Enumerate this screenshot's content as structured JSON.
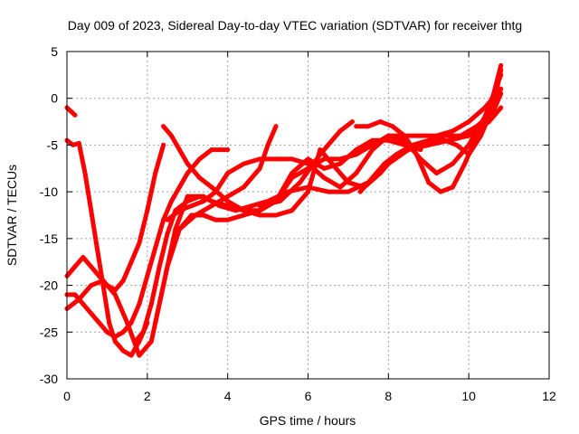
{
  "chart_data": {
    "type": "line",
    "title": "Day 009 of 2023, Sidereal Day-to-day VTEC variation (SDTVAR) for receiver thtg",
    "xlabel": "GPS time / hours",
    "ylabel": "SDTVAR / TECUs",
    "xlim": [
      0,
      12
    ],
    "ylim": [
      -30,
      5
    ],
    "x_ticks": [
      0,
      2,
      4,
      6,
      8,
      10,
      12
    ],
    "y_ticks": [
      -30,
      -25,
      -20,
      -15,
      -10,
      -5,
      0,
      5
    ],
    "grid": true,
    "legend": "none",
    "color": "#ff0000",
    "series": [
      {
        "x": [
          0.0,
          0.2
        ],
        "y": [
          -1.0,
          -1.8
        ]
      },
      {
        "x": [
          0.0,
          0.15,
          0.3,
          0.45,
          0.6,
          0.75,
          0.9,
          1.05,
          1.2,
          1.4,
          1.6,
          1.8,
          2.0
        ],
        "y": [
          -4.5,
          -5.0,
          -4.8,
          -8.0,
          -12.0,
          -16.0,
          -20.0,
          -24.0,
          -26.0,
          -27.0,
          -27.5,
          -26.0,
          -24.0
        ]
      },
      {
        "x": [
          0.0,
          0.2,
          0.4,
          0.6,
          0.8,
          1.0,
          1.2,
          1.4,
          1.6,
          1.8,
          2.0,
          2.2,
          2.4
        ],
        "y": [
          -19.0,
          -18.0,
          -17.0,
          -18.0,
          -19.0,
          -20.0,
          -20.5,
          -19.5,
          -17.5,
          -15.5,
          -12.0,
          -8.0,
          -5.0
        ]
      },
      {
        "x": [
          0.0,
          0.2,
          0.4,
          0.6,
          0.8,
          1.0,
          1.2,
          1.4,
          1.6,
          1.8,
          2.0,
          2.2,
          2.4,
          2.6,
          2.8,
          3.0,
          3.3,
          3.6,
          4.0
        ],
        "y": [
          -21.0,
          -21.0,
          -22.0,
          -23.0,
          -24.0,
          -25.0,
          -25.5,
          -25.0,
          -24.0,
          -22.0,
          -19.0,
          -16.0,
          -13.0,
          -11.0,
          -9.5,
          -8.0,
          -6.5,
          -5.5,
          -5.5
        ]
      },
      {
        "x": [
          0.0,
          0.3,
          0.6,
          0.9,
          1.2,
          1.5,
          1.8,
          2.1,
          2.4,
          2.7,
          3.0,
          3.4,
          3.8,
          4.2,
          4.6,
          5.0,
          5.5,
          6.0,
          6.5,
          7.0,
          7.5,
          8.0,
          8.5,
          9.0,
          9.5,
          10.0,
          10.5,
          10.8
        ],
        "y": [
          -22.5,
          -21.5,
          -20.0,
          -19.5,
          -21.0,
          -24.0,
          -27.5,
          -26.0,
          -20.0,
          -14.0,
          -10.5,
          -10.5,
          -11.5,
          -12.0,
          -11.5,
          -11.0,
          -10.0,
          -9.5,
          -10.0,
          -10.0,
          -9.0,
          -7.0,
          -5.5,
          -5.0,
          -4.5,
          -4.0,
          -2.5,
          -1.0
        ]
      },
      {
        "x": [
          1.7,
          1.9,
          2.1,
          2.3,
          2.5,
          2.7,
          3.0,
          3.3,
          3.6,
          4.0,
          4.4,
          4.8,
          5.2,
          5.6,
          6.0,
          6.4,
          6.8,
          7.2,
          7.6,
          8.0,
          8.4,
          8.8
        ],
        "y": [
          -26.0,
          -25.0,
          -22.0,
          -18.0,
          -14.5,
          -12.0,
          -11.0,
          -10.5,
          -11.0,
          -11.5,
          -12.0,
          -12.0,
          -11.0,
          -8.0,
          -6.5,
          -7.5,
          -7.0,
          -5.5,
          -4.5,
          -4.5,
          -5.0,
          -5.5
        ]
      },
      {
        "x": [
          2.2,
          2.5,
          2.8,
          3.1,
          3.4,
          3.7,
          4.0,
          4.4,
          4.8,
          5.2,
          5.6,
          6.0,
          6.4,
          6.8,
          7.2,
          7.6,
          8.0,
          8.4,
          8.8,
          9.2,
          9.6,
          10.0,
          10.4,
          10.8
        ],
        "y": [
          -24.0,
          -18.0,
          -14.0,
          -12.5,
          -12.5,
          -13.0,
          -13.0,
          -12.5,
          -12.0,
          -11.0,
          -8.5,
          -7.5,
          -6.5,
          -6.5,
          -6.0,
          -5.0,
          -4.0,
          -4.0,
          -4.0,
          -4.0,
          -3.5,
          -2.5,
          -1.0,
          1.0
        ]
      },
      {
        "x": [
          2.4,
          2.6,
          2.8,
          3.0,
          3.3,
          3.6,
          4.0,
          4.4,
          4.8,
          5.2,
          5.6,
          6.0,
          6.3,
          6.6,
          7.0,
          7.4,
          7.8,
          8.2,
          8.6,
          9.0,
          9.4,
          9.8,
          10.2,
          10.6,
          10.8
        ],
        "y": [
          -3.0,
          -4.0,
          -5.5,
          -7.0,
          -8.5,
          -9.5,
          -11.0,
          -12.0,
          -12.5,
          -12.5,
          -12.0,
          -10.0,
          -5.5,
          -7.0,
          -9.0,
          -9.5,
          -8.0,
          -6.0,
          -5.0,
          -4.5,
          -4.0,
          -4.0,
          -3.0,
          -1.5,
          0.5
        ]
      },
      {
        "x": [
          2.5,
          2.8,
          3.1,
          3.4,
          3.7,
          4.0,
          4.4,
          4.8,
          5.2,
          5.6,
          6.0,
          6.4,
          6.8,
          7.2,
          7.6,
          8.0,
          8.4,
          8.8,
          9.2,
          9.6,
          10.0,
          10.4,
          10.8
        ],
        "y": [
          -13.0,
          -12.0,
          -11.5,
          -11.0,
          -10.0,
          -8.0,
          -7.0,
          -6.5,
          -6.5,
          -6.5,
          -7.0,
          -8.5,
          -9.5,
          -8.0,
          -5.5,
          -4.0,
          -4.5,
          -6.5,
          -8.0,
          -7.0,
          -5.0,
          -2.0,
          2.5
        ]
      },
      {
        "x": [
          2.8,
          3.2,
          3.6,
          4.0,
          4.4,
          4.8,
          5.0,
          5.2
        ],
        "y": [
          -14.0,
          -12.5,
          -11.5,
          -10.5,
          -9.5,
          -7.5,
          -5.0,
          -3.0
        ]
      },
      {
        "x": [
          4.8,
          5.3,
          5.8,
          6.3,
          6.8,
          7.1
        ],
        "y": [
          -11.5,
          -11.0,
          -9.0,
          -6.0,
          -3.5,
          -2.5
        ]
      },
      {
        "x": [
          7.2,
          7.5,
          7.8,
          8.1,
          8.4,
          8.7,
          9.0,
          9.3,
          9.6,
          9.9,
          10.2,
          10.5,
          10.8
        ],
        "y": [
          -3.0,
          -3.0,
          -2.5,
          -3.0,
          -4.0,
          -6.0,
          -9.0,
          -10.0,
          -9.5,
          -7.0,
          -4.0,
          -1.5,
          3.5
        ]
      },
      {
        "x": [
          7.3,
          7.6,
          7.9,
          8.2,
          8.5,
          8.8,
          9.1,
          9.4,
          9.7,
          10.0,
          10.3,
          10.6,
          10.8
        ],
        "y": [
          -10.0,
          -8.5,
          -7.0,
          -6.0,
          -5.5,
          -5.0,
          -4.5,
          -4.5,
          -5.0,
          -6.0,
          -4.0,
          -1.0,
          3.0
        ]
      }
    ]
  }
}
